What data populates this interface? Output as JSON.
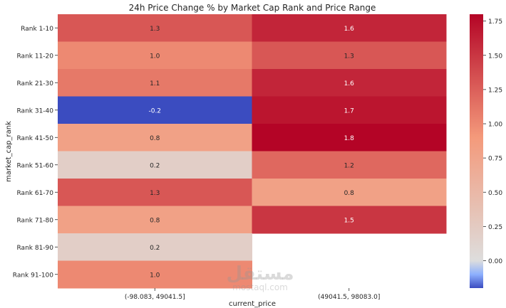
{
  "chart_data": {
    "type": "heatmap",
    "title": "24h Price Change % by Market Cap Rank and Price Range",
    "xlabel": "current_price",
    "ylabel": "market_cap_rank",
    "x_categories": [
      "(-98.083, 49041.5]",
      "(49041.5, 98083.0]"
    ],
    "y_categories": [
      "Rank 1-10",
      "Rank 11-20",
      "Rank 21-30",
      "Rank 31-40",
      "Rank 41-50",
      "Rank 51-60",
      "Rank 61-70",
      "Rank 71-80",
      "Rank 81-90",
      "Rank 91-100"
    ],
    "values": [
      [
        1.3,
        1.6
      ],
      [
        1.0,
        1.3
      ],
      [
        1.1,
        1.6
      ],
      [
        -0.2,
        1.7
      ],
      [
        0.8,
        1.8
      ],
      [
        0.2,
        1.2
      ],
      [
        1.3,
        0.8
      ],
      [
        0.8,
        1.5
      ],
      [
        0.2,
        null
      ],
      [
        1.0,
        null
      ]
    ],
    "colormap": "coolwarm",
    "colorbar": {
      "vmin": -0.2,
      "vmax": 1.8,
      "ticks": [
        0.0,
        0.25,
        0.5,
        0.75,
        1.0,
        1.25,
        1.5,
        1.75
      ],
      "tick_labels": [
        "0.00",
        "0.25",
        "0.50",
        "0.75",
        "1.00",
        "1.25",
        "1.50",
        "1.75"
      ]
    }
  },
  "watermark": {
    "arabic": "مستقل",
    "latin": "mostaql.com"
  }
}
